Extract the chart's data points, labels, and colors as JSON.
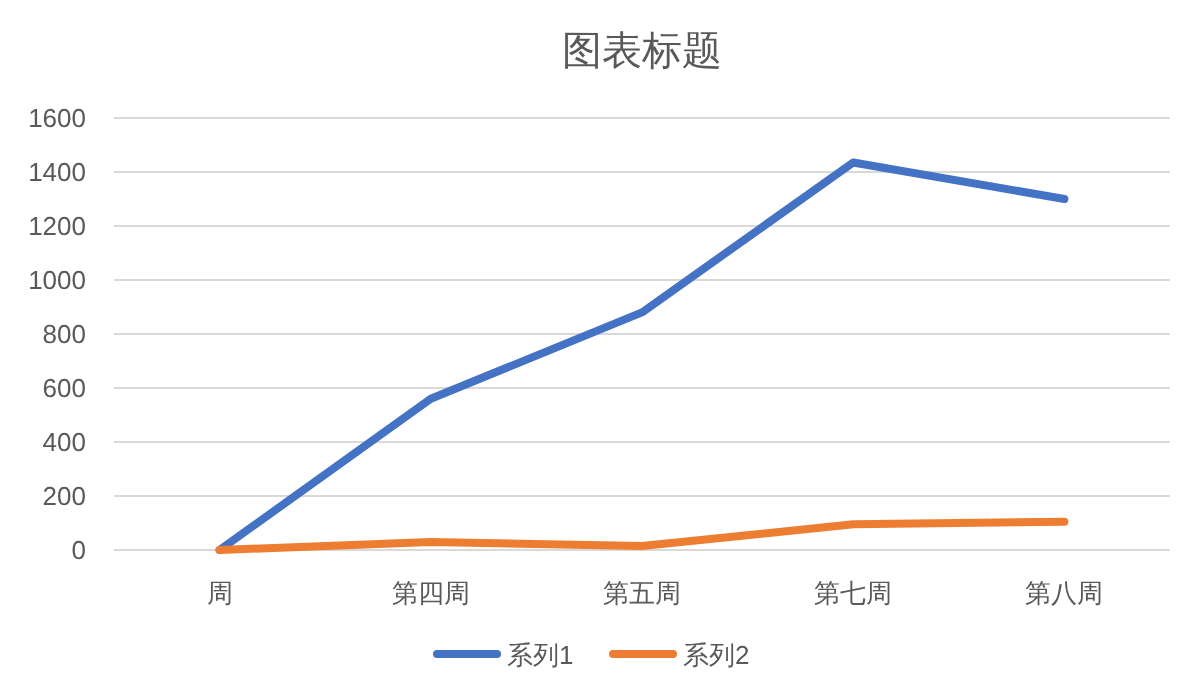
{
  "chart_data": {
    "type": "line",
    "title": "图表标题",
    "categories": [
      "周",
      "第四周",
      "第五周",
      "第七周",
      "第八周"
    ],
    "series": [
      {
        "name": "系列1",
        "color": "#4472c4",
        "values": [
          0,
          560,
          880,
          1435,
          1300
        ]
      },
      {
        "name": "系列2",
        "color": "#ed7d31",
        "values": [
          0,
          30,
          15,
          95,
          105
        ]
      }
    ],
    "ylim": [
      0,
      1600
    ],
    "yticks": [
      0,
      200,
      400,
      600,
      800,
      1000,
      1200,
      1400,
      1600
    ],
    "grid": "y",
    "legend": "bottom",
    "marker": "none",
    "line_style": "solid"
  }
}
